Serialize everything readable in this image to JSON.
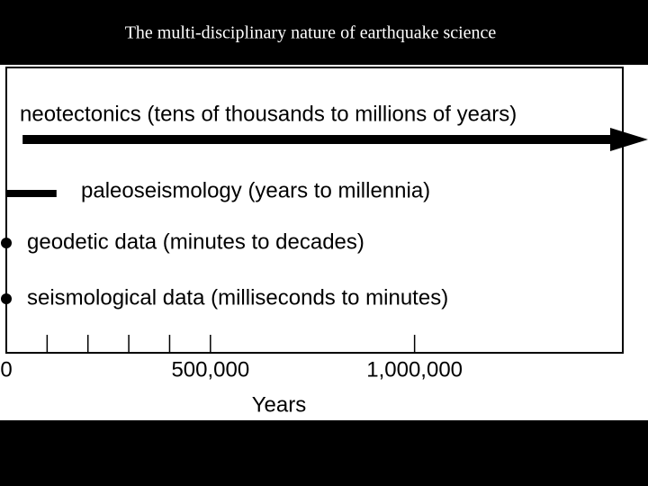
{
  "chart_data": {
    "type": "timeline",
    "title": "The multi-disciplinary nature of earthquake science",
    "xlabel": "Years",
    "xlim": [
      0,
      1510000
    ],
    "xticks": [
      0,
      {
        "value": 500000,
        "label": "500,000"
      },
      {
        "value": 1000000,
        "label": "1,000,000"
      }
    ],
    "minor_xticks": [
      100000,
      200000,
      300000,
      400000
    ],
    "series": [
      {
        "name": "neotectonics (tens of thousands to millions of years)",
        "kind": "arrow",
        "start": 40000,
        "color": "#000000"
      },
      {
        "name": "paleoseismology (years to millennia)",
        "kind": "bar",
        "start": 0,
        "end": 123000,
        "color": "#000000"
      },
      {
        "name": "geodetic data (minutes to decades)",
        "kind": "point",
        "value": 0,
        "color": "#000000"
      },
      {
        "name": "seismological data (milliseconds to minutes)",
        "kind": "point",
        "value": 0,
        "color": "#000000"
      }
    ]
  }
}
